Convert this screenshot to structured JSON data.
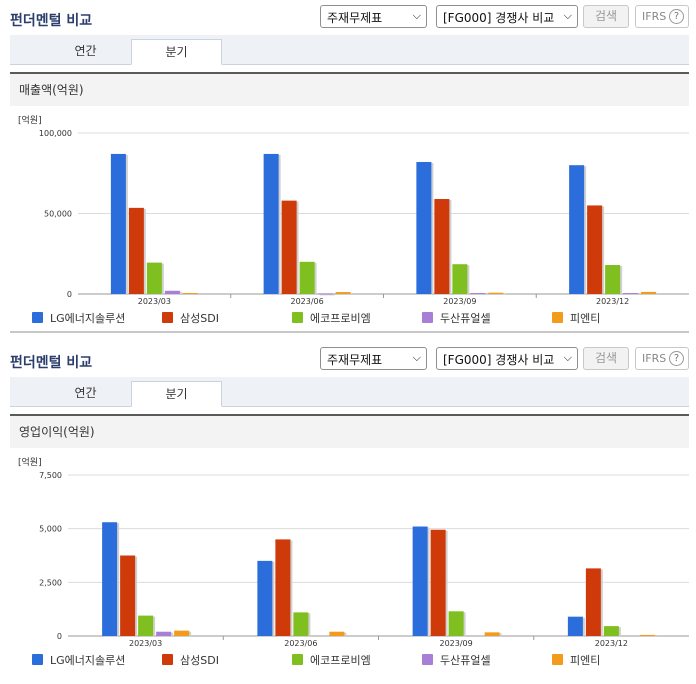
{
  "panels": [
    {
      "title": "펀더멘털 비교",
      "select_statement": "주재무제표",
      "select_group": "[FG000] 경쟁사 비교",
      "search_label": "검색",
      "ifrs_label": "IFRS",
      "tabs": [
        "연간",
        "분기"
      ],
      "active_tab": "분기",
      "chart_heading": "매출액(억원)"
    },
    {
      "title": "펀더멘털 비교",
      "select_statement": "주재무제표",
      "select_group": "[FG000] 경쟁사 비교",
      "search_label": "검색",
      "ifrs_label": "IFRS",
      "tabs": [
        "연간",
        "분기"
      ],
      "active_tab": "분기",
      "chart_heading": "영업이익(억원)"
    }
  ],
  "chart_data": [
    {
      "type": "bar",
      "title": "매출액(억원)",
      "unit_label": "[억원]",
      "categories": [
        "2023/03",
        "2023/06",
        "2023/09",
        "2023/12"
      ],
      "yticks": [
        "0",
        "50,000",
        "100,000"
      ],
      "ylim": [
        0,
        100000
      ],
      "grid": true,
      "legend_position": "bottom",
      "series": [
        {
          "name": "LG에너지솔루션",
          "color": "#2a6ddb",
          "values": [
            87000,
            87000,
            82000,
            80000
          ]
        },
        {
          "name": "삼성SDI",
          "color": "#cf3a0a",
          "values": [
            53500,
            58000,
            59000,
            55000
          ]
        },
        {
          "name": "에코프로비엠",
          "color": "#7fbf1f",
          "values": [
            19500,
            20000,
            18500,
            18000
          ]
        },
        {
          "name": "두산퓨얼셀",
          "color": "#a77fd6",
          "values": [
            2000,
            400,
            600,
            600
          ]
        },
        {
          "name": "피엔티",
          "color": "#f29b1d",
          "values": [
            600,
            1200,
            800,
            1300
          ]
        }
      ]
    },
    {
      "type": "bar",
      "title": "영업이익(억원)",
      "unit_label": "[억원]",
      "categories": [
        "2023/03",
        "2023/06",
        "2023/09",
        "2023/12"
      ],
      "yticks": [
        "0",
        "2,500",
        "5,000",
        "7,500"
      ],
      "ylim": [
        0,
        7500
      ],
      "grid": true,
      "legend_position": "bottom",
      "series": [
        {
          "name": "LG에너지솔루션",
          "color": "#2a6ddb",
          "values": [
            5300,
            3500,
            5100,
            900
          ]
        },
        {
          "name": "삼성SDI",
          "color": "#cf3a0a",
          "values": [
            3750,
            4500,
            4950,
            3150
          ]
        },
        {
          "name": "에코프로비엠",
          "color": "#7fbf1f",
          "values": [
            950,
            1100,
            1150,
            460
          ]
        },
        {
          "name": "두산퓨얼셀",
          "color": "#a77fd6",
          "values": [
            200,
            0,
            0,
            0
          ]
        },
        {
          "name": "피엔티",
          "color": "#f29b1d",
          "values": [
            250,
            200,
            170,
            50
          ]
        }
      ]
    }
  ]
}
